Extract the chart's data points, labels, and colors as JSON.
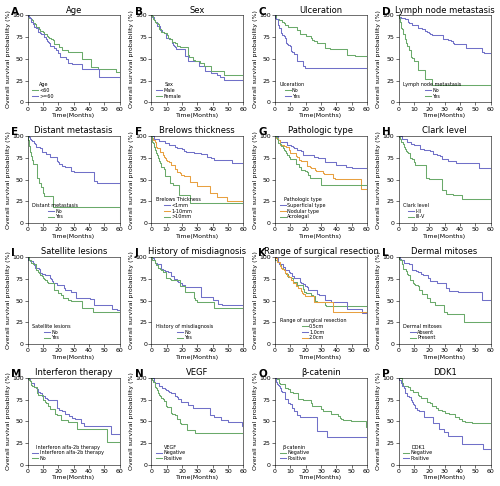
{
  "panels": [
    {
      "label": "A",
      "title": "Age",
      "legend_title": "Age",
      "curves": [
        {
          "label": "<60",
          "color": "#6aaa6a",
          "start": 1.0,
          "end": 0.32,
          "tau": 38
        },
        {
          "label": ">=60",
          "color": "#7070c8",
          "start": 1.0,
          "end": 0.22,
          "tau": 32
        }
      ]
    },
    {
      "label": "B",
      "title": "Sex",
      "legend_title": "Sex",
      "curves": [
        {
          "label": "Male",
          "color": "#7070c8",
          "start": 1.0,
          "end": 0.2,
          "tau": 32
        },
        {
          "label": "Female",
          "color": "#6aaa6a",
          "start": 1.0,
          "end": 0.24,
          "tau": 35
        }
      ]
    },
    {
      "label": "C",
      "title": "Ulceration",
      "legend_title": "Ulceration",
      "curves": [
        {
          "label": "No",
          "color": "#6aaa6a",
          "start": 1.0,
          "end": 0.48,
          "tau": 55
        },
        {
          "label": "Yes",
          "color": "#7070c8",
          "start": 1.0,
          "end": 0.13,
          "tau": 18
        }
      ]
    },
    {
      "label": "D",
      "title": "Lymph node metastasis",
      "legend_title": "Lymph node metastasis",
      "curves": [
        {
          "label": "No",
          "color": "#7070c8",
          "start": 1.0,
          "end": 0.55,
          "tau": 60
        },
        {
          "label": "Yes",
          "color": "#6aaa6a",
          "start": 1.0,
          "end": 0.06,
          "tau": 12
        }
      ]
    },
    {
      "label": "E",
      "title": "Distant metastasis",
      "legend_title": "Distant metastasis",
      "curves": [
        {
          "label": "No",
          "color": "#7070c8",
          "start": 1.0,
          "end": 0.4,
          "tau": 40
        },
        {
          "label": "Yes",
          "color": "#6aaa6a",
          "start": 1.0,
          "end": 0.04,
          "tau": 9
        }
      ]
    },
    {
      "label": "F",
      "title": "Brelows thickness",
      "legend_title": "Brelows Thickness",
      "curves": [
        {
          "label": "<1mm",
          "color": "#7070c8",
          "start": 1.0,
          "end": 0.65,
          "tau": 75
        },
        {
          "label": "1-10mm",
          "color": "#e8a040",
          "start": 1.0,
          "end": 0.22,
          "tau": 28
        },
        {
          "label": ">10mm",
          "color": "#6aaa6a",
          "start": 1.0,
          "end": 0.1,
          "tau": 14
        }
      ]
    },
    {
      "label": "G",
      "title": "Pathologic type",
      "legend_title": "Pathologic type",
      "curves": [
        {
          "label": "Superficial type",
          "color": "#7070c8",
          "start": 1.0,
          "end": 0.58,
          "tau": 65
        },
        {
          "label": "Nodular type",
          "color": "#e8a040",
          "start": 1.0,
          "end": 0.38,
          "tau": 42
        },
        {
          "label": "Acrolegal",
          "color": "#6aaa6a",
          "start": 1.0,
          "end": 0.26,
          "tau": 30
        }
      ]
    },
    {
      "label": "H",
      "title": "Clark level",
      "legend_title": "Clark level",
      "curves": [
        {
          "label": "I-II",
          "color": "#7070c8",
          "start": 1.0,
          "end": 0.58,
          "tau": 80
        },
        {
          "label": "III-V",
          "color": "#6aaa6a",
          "start": 1.0,
          "end": 0.18,
          "tau": 25
        }
      ]
    },
    {
      "label": "I",
      "title": "Satellite lesions",
      "legend_title": "Satellite lesions",
      "curves": [
        {
          "label": "No",
          "color": "#7070c8",
          "start": 1.0,
          "end": 0.38,
          "tau": 38
        },
        {
          "label": "Yes",
          "color": "#6aaa6a",
          "start": 1.0,
          "end": 0.28,
          "tau": 30
        }
      ]
    },
    {
      "label": "J",
      "title": "History of misdiagnosis",
      "legend_title": "History of misdiagnosis",
      "curves": [
        {
          "label": "No",
          "color": "#7070c8",
          "start": 1.0,
          "end": 0.38,
          "tau": 42
        },
        {
          "label": "Yes",
          "color": "#6aaa6a",
          "start": 1.0,
          "end": 0.28,
          "tau": 35
        }
      ]
    },
    {
      "label": "K",
      "title": "Range of surgical resection",
      "legend_title": "Range of surgical resection",
      "curves": [
        {
          "label": "0.5cm",
          "color": "#6aaa6a",
          "start": 1.0,
          "end": 0.28,
          "tau": 30
        },
        {
          "label": "1.0cm",
          "color": "#7070c8",
          "start": 1.0,
          "end": 0.35,
          "tau": 38
        },
        {
          "label": "2.0cm",
          "color": "#e8a040",
          "start": 1.0,
          "end": 0.25,
          "tau": 28
        }
      ]
    },
    {
      "label": "L",
      "title": "Dermal mitoses",
      "legend_title": "Dermal mitoses",
      "curves": [
        {
          "label": "Absent",
          "color": "#7070c8",
          "start": 1.0,
          "end": 0.48,
          "tau": 52
        },
        {
          "label": "Present",
          "color": "#6aaa6a",
          "start": 1.0,
          "end": 0.18,
          "tau": 25
        }
      ]
    },
    {
      "label": "M",
      "title": "Interferon therapy",
      "legend_title": "Interferon alfa-2b therapy",
      "curves": [
        {
          "label": "Interferon alfa-2b therapy",
          "color": "#7070c8",
          "start": 1.0,
          "end": 0.32,
          "tau": 36
        },
        {
          "label": "No",
          "color": "#6aaa6a",
          "start": 1.0,
          "end": 0.24,
          "tau": 30
        }
      ]
    },
    {
      "label": "N",
      "title": "VEGF",
      "legend_title": "VEGF",
      "curves": [
        {
          "label": "Negative",
          "color": "#7070c8",
          "start": 1.0,
          "end": 0.44,
          "tau": 50
        },
        {
          "label": "Positive",
          "color": "#6aaa6a",
          "start": 1.0,
          "end": 0.16,
          "tau": 22
        }
      ]
    },
    {
      "label": "O",
      "title": "β-catenin",
      "legend_title": "β-catenin",
      "curves": [
        {
          "label": "Negative",
          "color": "#6aaa6a",
          "start": 1.0,
          "end": 0.44,
          "tau": 50
        },
        {
          "label": "Positive",
          "color": "#7070c8",
          "start": 1.0,
          "end": 0.18,
          "tau": 24
        }
      ]
    },
    {
      "label": "P",
      "title": "DDK1",
      "legend_title": "DDK1",
      "curves": [
        {
          "label": "Negative",
          "color": "#6aaa6a",
          "start": 1.0,
          "end": 0.4,
          "tau": 46
        },
        {
          "label": "Positive",
          "color": "#7070c8",
          "start": 1.0,
          "end": 0.18,
          "tau": 24
        }
      ]
    }
  ],
  "xlim": [
    0,
    60
  ],
  "ylim": [
    0,
    100
  ],
  "xticks": [
    0,
    10,
    20,
    30,
    40,
    50,
    60
  ],
  "yticks": [
    0,
    25,
    50,
    75,
    100
  ],
  "xlabel": "Time(Months)",
  "ylabel": "Overall survival probability (%)",
  "bg_color": "#ffffff",
  "line_width": 0.75,
  "tick_fontsize": 4.5,
  "label_fontsize": 4.5,
  "title_fontsize": 6.0,
  "legend_fontsize": 3.5,
  "panel_label_fontsize": 7.5
}
